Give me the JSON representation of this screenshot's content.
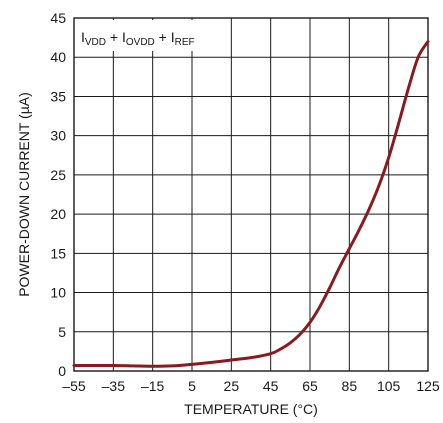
{
  "chart_data": {
    "type": "line",
    "title": "",
    "xlabel": "TEMPERATURE (°C)",
    "ylabel": "POWER-DOWN CURRENT (µA)",
    "xlim": [
      -55,
      125
    ],
    "ylim": [
      0,
      45
    ],
    "x_ticks": [
      -55,
      -35,
      -15,
      5,
      25,
      45,
      65,
      85,
      105,
      125
    ],
    "x_tick_labels": [
      "–55",
      "–35",
      "–15",
      "5",
      "25",
      "45",
      "65",
      "85",
      "105",
      "125"
    ],
    "y_ticks": [
      0,
      5,
      10,
      15,
      20,
      25,
      30,
      35,
      40,
      45
    ],
    "y_tick_labels": [
      "0",
      "5",
      "10",
      "15",
      "20",
      "25",
      "30",
      "35",
      "40",
      "45"
    ],
    "grid": true,
    "series_color": "#8b1a1e",
    "annotation": {
      "parts": [
        {
          "text": "I",
          "sub": false
        },
        {
          "text": "VDD",
          "sub": true
        },
        {
          "text": " + I",
          "sub": false
        },
        {
          "text": "OVDD",
          "sub": true
        },
        {
          "text": " + I",
          "sub": false
        },
        {
          "text": "REF",
          "sub": true
        }
      ]
    },
    "series": [
      {
        "x": [
          -55,
          -45,
          -35,
          -25,
          -15,
          -5,
          5,
          15,
          25,
          35,
          45,
          50,
          55,
          60,
          65,
          70,
          75,
          80,
          85,
          90,
          95,
          100,
          105,
          110,
          115,
          120,
          125
        ],
        "y": [
          0.7,
          0.7,
          0.7,
          0.65,
          0.6,
          0.65,
          0.85,
          1.1,
          1.4,
          1.7,
          2.2,
          2.8,
          3.6,
          4.7,
          6.2,
          8.2,
          10.6,
          13.2,
          15.6,
          18.0,
          20.6,
          23.6,
          27.2,
          31.5,
          36.0,
          40.0,
          42.0
        ]
      }
    ]
  }
}
